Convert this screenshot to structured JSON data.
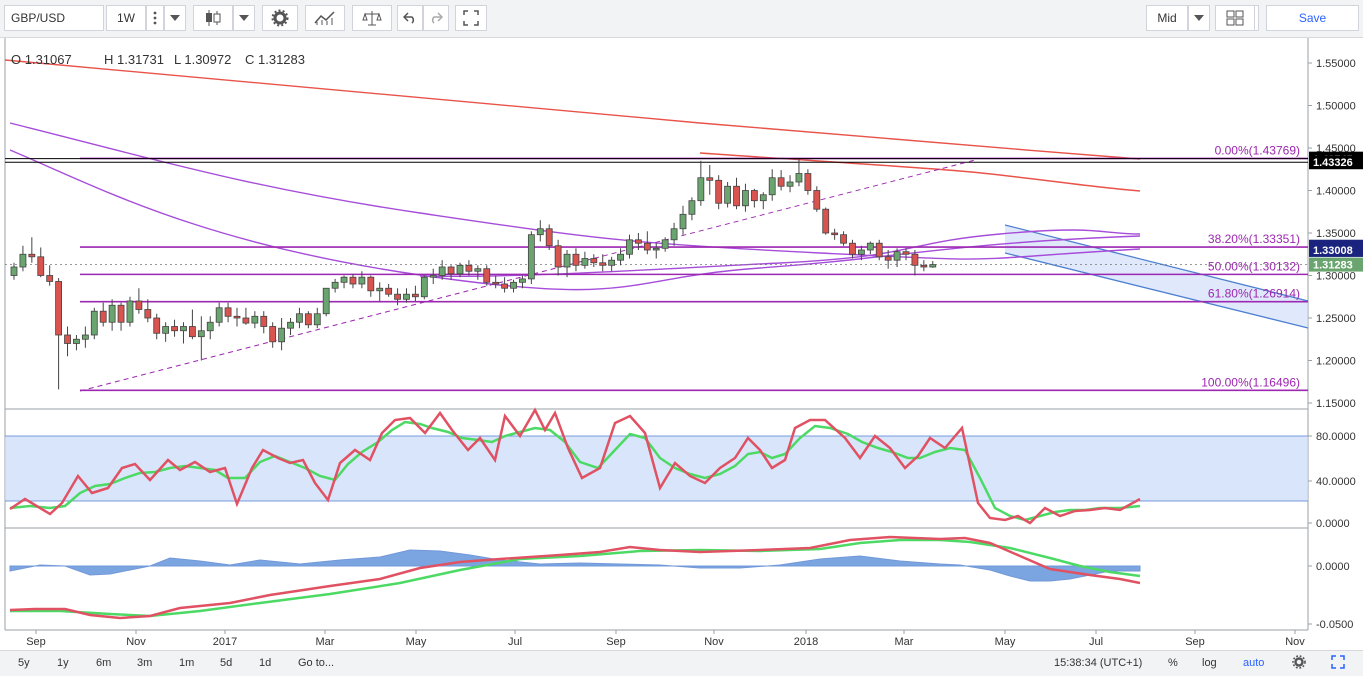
{
  "toolbar": {
    "symbol": "GBP/USD",
    "interval": "1W",
    "price_type": "Mid",
    "save_label": "Save"
  },
  "legend": {
    "open": "O 1.31067",
    "high": "H 1.31731",
    "low": "L 1.30972",
    "close": "C 1.31283"
  },
  "price_axis": [
    "1.55000",
    "1.50000",
    "1.45000",
    "1.40000",
    "1.35000",
    "1.30000",
    "1.25000",
    "1.20000",
    "1.15000"
  ],
  "price_badges": [
    {
      "label": "1.43745",
      "value": 1.43745,
      "color": "#000000"
    },
    {
      "label": "1.43326",
      "value": 1.43326,
      "color": "#000000"
    },
    {
      "label": "1.33384",
      "value": 1.33384,
      "color": "#1a237e"
    },
    {
      "label": "1.33008",
      "value": 1.33008,
      "color": "#1a237e"
    },
    {
      "label": "1.31283",
      "value": 1.31283,
      "color": "#6aa56f"
    }
  ],
  "fib_levels": [
    {
      "label": "0.00%(1.43769)",
      "value": 1.43769
    },
    {
      "label": "38.20%(1.33351)",
      "value": 1.33351
    },
    {
      "label": "50.00%(1.30132)",
      "value": 1.30132
    },
    {
      "label": "61.80%(1.26914)",
      "value": 1.26914
    },
    {
      "label": "100.00%(1.16496)",
      "value": 1.16496
    }
  ],
  "stoch_axis": [
    "80.0000",
    "40.0000",
    "0.0000"
  ],
  "macd_axis": [
    "0.0000",
    "-0.0500"
  ],
  "time_axis": [
    "Sep",
    "Nov",
    "2017",
    "Mar",
    "May",
    "Jul",
    "Sep",
    "Nov",
    "2018",
    "Mar",
    "May",
    "Jul",
    "Sep",
    "Nov"
  ],
  "bottom": {
    "ranges": [
      "5y",
      "1y",
      "6m",
      "3m",
      "1m",
      "5d",
      "1d"
    ],
    "goto": "Go to...",
    "clock": "15:38:34 (UTC+1)",
    "percent": "%",
    "log": "log",
    "auto": "auto"
  },
  "colors": {
    "up": "#6aa56f",
    "down": "#d9534f",
    "fib": "#9c27b0",
    "ma_red": "#e8534a",
    "ma_purple": "#a64dd9",
    "channel": "#4f7fd0",
    "stoch_k": "#e05263",
    "stoch_d": "#4cd964",
    "band": "#c9daf8"
  }
}
